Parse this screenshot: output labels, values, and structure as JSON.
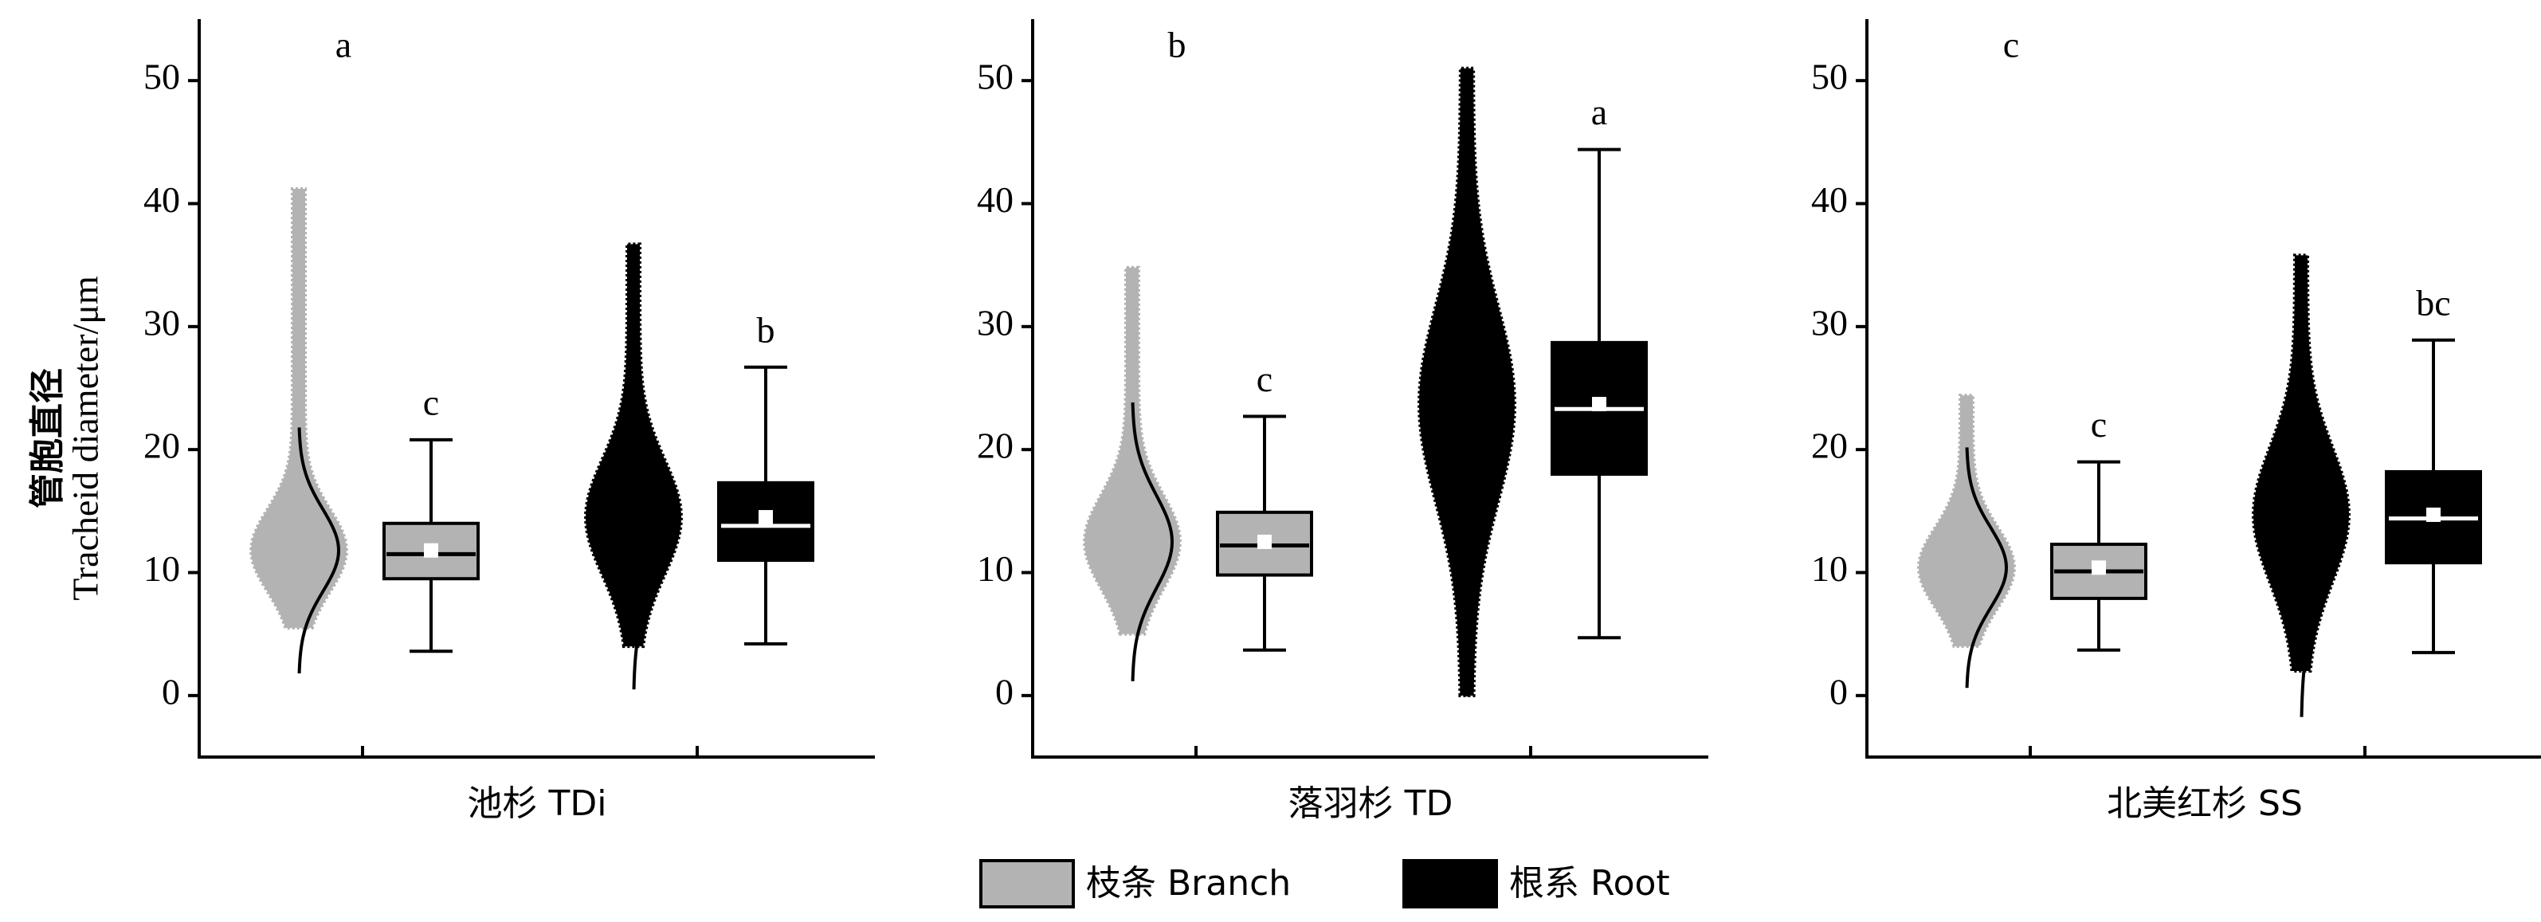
{
  "y_label": [
    "管胞直径",
    "Tracheid diameter/μm"
  ],
  "legend": [
    {
      "name": "枝条 Branch",
      "color": "#b3b3b3",
      "median_color": "#000000"
    },
    {
      "name": "根系 Root",
      "color": "#000000",
      "median_color": "#ffffff"
    }
  ],
  "mean_marker_color": "#ffffff",
  "chart_data": [
    {
      "type": "box",
      "title": "池杉 TDi",
      "annotation": "a",
      "ylim": [
        -5,
        55
      ],
      "yticks": [
        0,
        10,
        20,
        30,
        40,
        50
      ],
      "series": [
        {
          "min": 3.6,
          "q1": 9.5,
          "median": 11.5,
          "q3": 14,
          "max": 20.8,
          "mean": 11.8,
          "letter": "c",
          "points_min": 5.5,
          "points_max": 41.2
        },
        {
          "min": 4.2,
          "q1": 11,
          "median": 13.8,
          "q3": 17.3,
          "max": 26.7,
          "mean": 14.5,
          "letter": "b",
          "points_min": 4,
          "points_max": 36.7
        }
      ]
    },
    {
      "type": "box",
      "title": "落羽杉 TD",
      "annotation": "b",
      "ylim": [
        -5,
        55
      ],
      "yticks": [
        0,
        10,
        20,
        30,
        40,
        50
      ],
      "series": [
        {
          "min": 3.7,
          "q1": 9.8,
          "median": 12.2,
          "q3": 14.9,
          "max": 22.7,
          "mean": 12.5,
          "letter": "c",
          "points_min": 5,
          "points_max": 34.8
        },
        {
          "min": 4.7,
          "q1": 18,
          "median": 23.3,
          "q3": 28.7,
          "max": 44.4,
          "mean": 23.7,
          "letter": "a",
          "points_min": 0,
          "points_max": 51
        }
      ]
    },
    {
      "type": "box",
      "title": "北美红杉 SS",
      "annotation": "c",
      "ylim": [
        -5,
        55
      ],
      "yticks": [
        0,
        10,
        20,
        30,
        40,
        50
      ],
      "series": [
        {
          "min": 3.7,
          "q1": 7.9,
          "median": 10.1,
          "q3": 12.3,
          "max": 19,
          "mean": 10.4,
          "letter": "c",
          "points_min": 4,
          "points_max": 24.4
        },
        {
          "min": 3.5,
          "q1": 10.8,
          "median": 14.4,
          "q3": 18.2,
          "max": 28.9,
          "mean": 14.7,
          "letter": "bc",
          "points_min": 2,
          "points_max": 35.8
        }
      ]
    }
  ]
}
